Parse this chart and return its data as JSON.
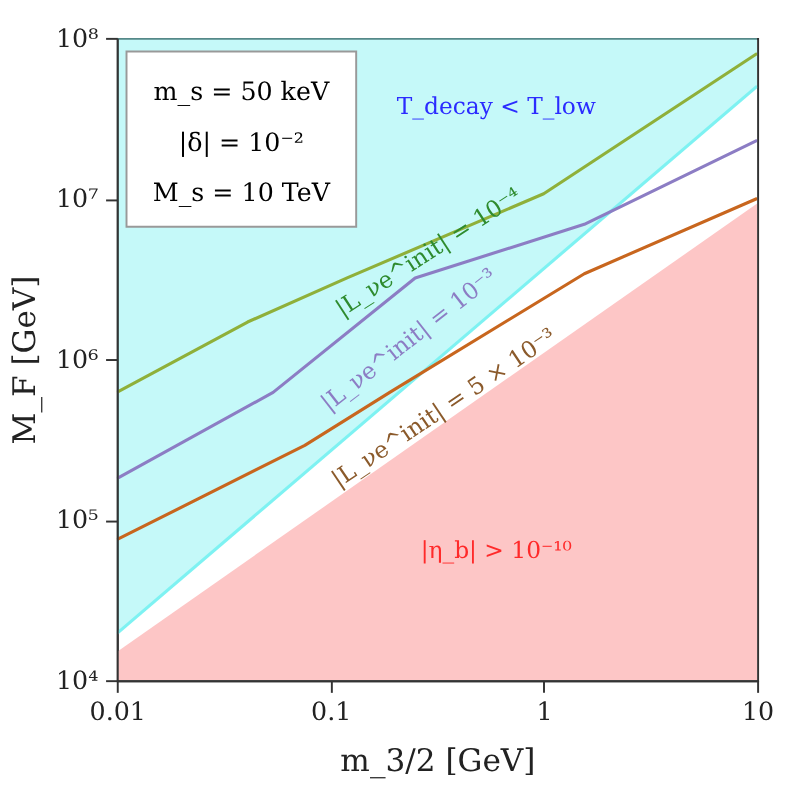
{
  "chart_data": {
    "type": "line",
    "xlabel": "m_3/2 [GeV]",
    "ylabel": "M_F [GeV]",
    "log": "xy",
    "grid": false,
    "xlim": [
      0.01,
      10
    ],
    "ylim": [
      10000,
      100000000
    ],
    "xticks": [
      0.01,
      0.1,
      1,
      10
    ],
    "yticks": [
      {
        "value": 10000,
        "label": "10⁴"
      },
      {
        "value": 100000,
        "label": "10⁵"
      },
      {
        "value": 1000000,
        "label": "10⁶"
      },
      {
        "value": 10000000,
        "label": "10⁷"
      },
      {
        "value": 100000000,
        "label": "10⁸"
      }
    ],
    "series": [
      {
        "color": "#7ef2f2",
        "x": [
          0.01,
          10
        ],
        "values": [
          19500,
          50000000
        ],
        "lower": [
          19500,
          50000000
        ],
        "upper": [
          100000000,
          100000000
        ]
      },
      {
        "type": "area",
        "color": "#fdc6c6",
        "x": [
          0.01,
          10
        ],
        "values": [
          15000,
          9300000
        ]
      },
      {
        "color": "#8fb03a",
        "x": [
          0.01,
          0.041,
          0.12,
          1,
          10
        ],
        "values": [
          620000,
          1700000,
          3200000,
          10700000,
          80000000
        ]
      },
      {
        "color": "#8c7dc4",
        "x": [
          0.01,
          0.054,
          0.25,
          1.55,
          10
        ],
        "values": [
          180000,
          620000,
          3200000,
          6900000,
          23000000
        ]
      },
      {
        "color": "#c8661e",
        "x": [
          0.01,
          0.076,
          0.19,
          1.55,
          10
        ],
        "values": [
          75000,
          290000,
          620000,
          3400000,
          10000000
        ]
      }
    ],
    "annotations": [
      "m_s = 50 keV",
      "|δ| = 10⁻²",
      "M_s = 10 TeV",
      "T_decay < T_low",
      "|L_νe^init| = 10⁻⁴",
      "|L_νe^init| = 10⁻³",
      "|L_νe^init| = 5 × 10⁻³",
      "|η_b| > 10⁻¹⁰"
    ]
  }
}
